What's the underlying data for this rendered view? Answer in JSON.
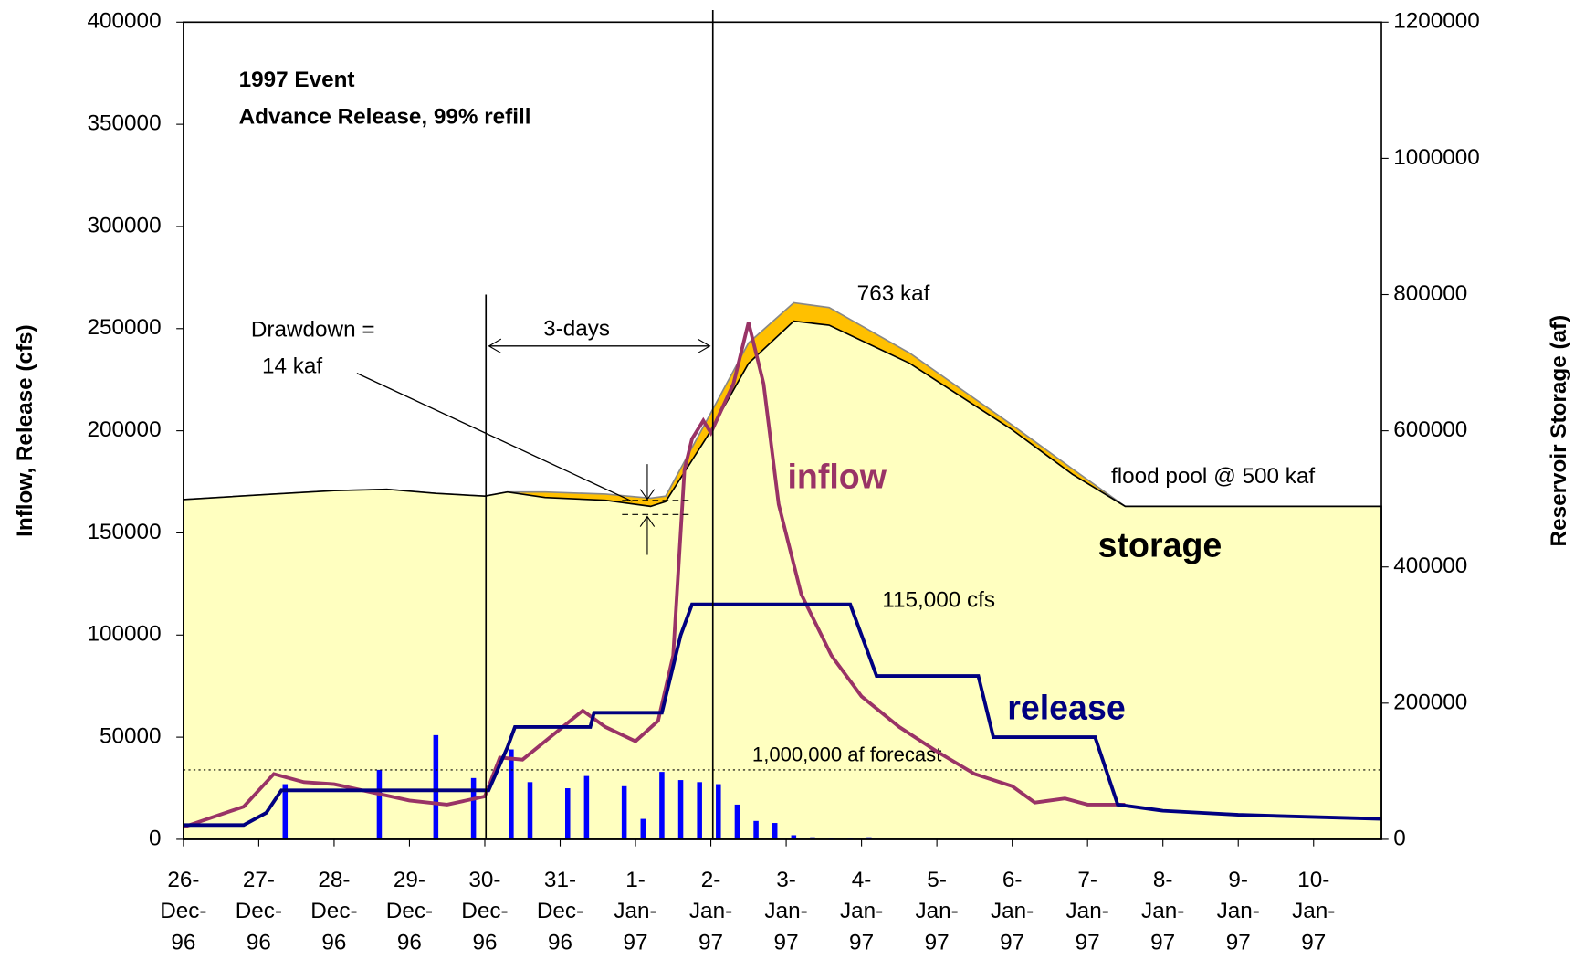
{
  "chart_data": {
    "type": "line",
    "annotations": {
      "event": "1997 Event",
      "subtitle": "Advance Release, 99% refill",
      "drawdown": "Drawdown =",
      "drawdown_value": "14 kaf",
      "span": "3-days",
      "peak": "763  kaf",
      "flood_pool": "flood pool @ 500 kaf",
      "max_release": "115,000 cfs"
    },
    "y_label": "Inflow, Release (cfs)",
    "y2_label": "Reservoir Storage (af)",
    "xlim": [
      0,
      15.9
    ],
    "xticks": [
      {
        "value": 0,
        "label": "26- Dec- 96"
      },
      {
        "value": 1,
        "label": "27- Dec- 96"
      },
      {
        "value": 2,
        "label": "28- Dec- 96"
      },
      {
        "value": 3,
        "label": "29- Dec- 96"
      },
      {
        "value": 4,
        "label": "30- Dec- 96"
      },
      {
        "value": 5,
        "label": "31- Dec- 96"
      },
      {
        "value": 6,
        "label": "1- Jan- 97"
      },
      {
        "value": 7,
        "label": "2- Jan- 97"
      },
      {
        "value": 8,
        "label": "3- Jan- 97"
      },
      {
        "value": 9,
        "label": "4- Jan- 97"
      },
      {
        "value": 10,
        "label": "5- Jan- 97"
      },
      {
        "value": 11,
        "label": "6- Jan- 97"
      },
      {
        "value": 12,
        "label": "7- Jan- 97"
      },
      {
        "value": 13,
        "label": "8- Jan- 97"
      },
      {
        "value": 14,
        "label": "9- Jan- 97"
      },
      {
        "value": 15,
        "label": "10- Jan- 97"
      }
    ],
    "ylim": [
      0,
      400000
    ],
    "yticks": [
      0,
      50000,
      100000,
      150000,
      200000,
      250000,
      300000,
      350000,
      400000
    ],
    "y2lim": [
      0,
      1200000
    ],
    "y2ticks": [
      0,
      200000,
      400000,
      600000,
      800000,
      1000000,
      1200000
    ],
    "reference_line": {
      "value": 34000,
      "label": "1,000,000 af forecast"
    },
    "series": [
      {
        "type": "area",
        "axis": "y2",
        "color": "#ffc000",
        "x": [
          0,
          1.2,
          2,
          2.7,
          3.35,
          4,
          4.3,
          4.8,
          5.6,
          6.2,
          6.4,
          6.96,
          7.5,
          8.1,
          8.57,
          9.64,
          10.98,
          11.8,
          12.5,
          15.9
        ],
        "values": [
          499000,
          507000,
          512000,
          514000,
          508000,
          504000,
          510000,
          510000,
          507000,
          501000,
          504000,
          618000,
          729000,
          788000,
          781000,
          714000,
          610000,
          544000,
          489000,
          489000
        ]
      },
      {
        "type": "area",
        "axis": "y2",
        "name": "storage",
        "color": "#ffffc0",
        "x": [
          0,
          1.2,
          2,
          2.7,
          3.35,
          4,
          4.3,
          4.8,
          5.6,
          6.2,
          6.4,
          6.96,
          7.5,
          8.1,
          8.57,
          9.64,
          10.98,
          11.8,
          12.5,
          15.9
        ],
        "values": [
          499000,
          507000,
          512000,
          514000,
          508000,
          504000,
          510000,
          502000,
          498000,
          489000,
          496000,
          593000,
          699000,
          761000,
          755000,
          699000,
          603000,
          536000,
          489000,
          489000
        ]
      },
      {
        "type": "line",
        "name": "inflow",
        "color": "#993366",
        "x": [
          0,
          0.8,
          1.2,
          1.6,
          2,
          2.5,
          3,
          3.5,
          4,
          4.2,
          4.5,
          4.8,
          5.3,
          5.6,
          6,
          6.3,
          6.5,
          6.65,
          6.75,
          6.9,
          7,
          7.3,
          7.5,
          7.7,
          7.9,
          8.2,
          8.6,
          9,
          9.5,
          10,
          10.5,
          11,
          11.3,
          11.7,
          12,
          12.5
        ],
        "values": [
          6000,
          16000,
          32000,
          28000,
          27000,
          23000,
          19000,
          17000,
          21000,
          40000,
          39000,
          48000,
          63000,
          55000,
          48000,
          58000,
          90000,
          181000,
          196000,
          205000,
          199000,
          223000,
          253000,
          223000,
          164000,
          120000,
          90000,
          70000,
          55000,
          43000,
          32000,
          26000,
          18000,
          20000,
          17000,
          17000
        ]
      },
      {
        "type": "line",
        "name": "release",
        "color": "#000080",
        "x": [
          0,
          0.8,
          1.1,
          1.3,
          4.05,
          4.3,
          4.4,
          5.4,
          5.45,
          6.35,
          6.6,
          6.75,
          8.85,
          9.2,
          10.55,
          10.75,
          12.1,
          12.4,
          13,
          14,
          15.9
        ],
        "values": [
          7000,
          7000,
          13000,
          24000,
          24000,
          45000,
          55000,
          55000,
          62000,
          62000,
          100000,
          115000,
          115000,
          80000,
          80000,
          50000,
          50000,
          17000,
          14000,
          12000,
          10000
        ]
      },
      {
        "type": "bar",
        "color": "#0000ff",
        "x": [
          1.35,
          2.6,
          3.35,
          3.85,
          4.35,
          4.6,
          5.1,
          5.35,
          5.85,
          6.1,
          6.35,
          6.6,
          6.85,
          7.1,
          7.35,
          7.6,
          7.85,
          8.1,
          8.35,
          8.6,
          8.85,
          9.1
        ],
        "values": [
          27000,
          34000,
          51000,
          30000,
          44000,
          28000,
          25000,
          31000,
          26000,
          10000,
          33000,
          29000,
          28000,
          27000,
          17000,
          9000,
          8000,
          2000,
          1000,
          500,
          500,
          1000
        ]
      }
    ]
  }
}
